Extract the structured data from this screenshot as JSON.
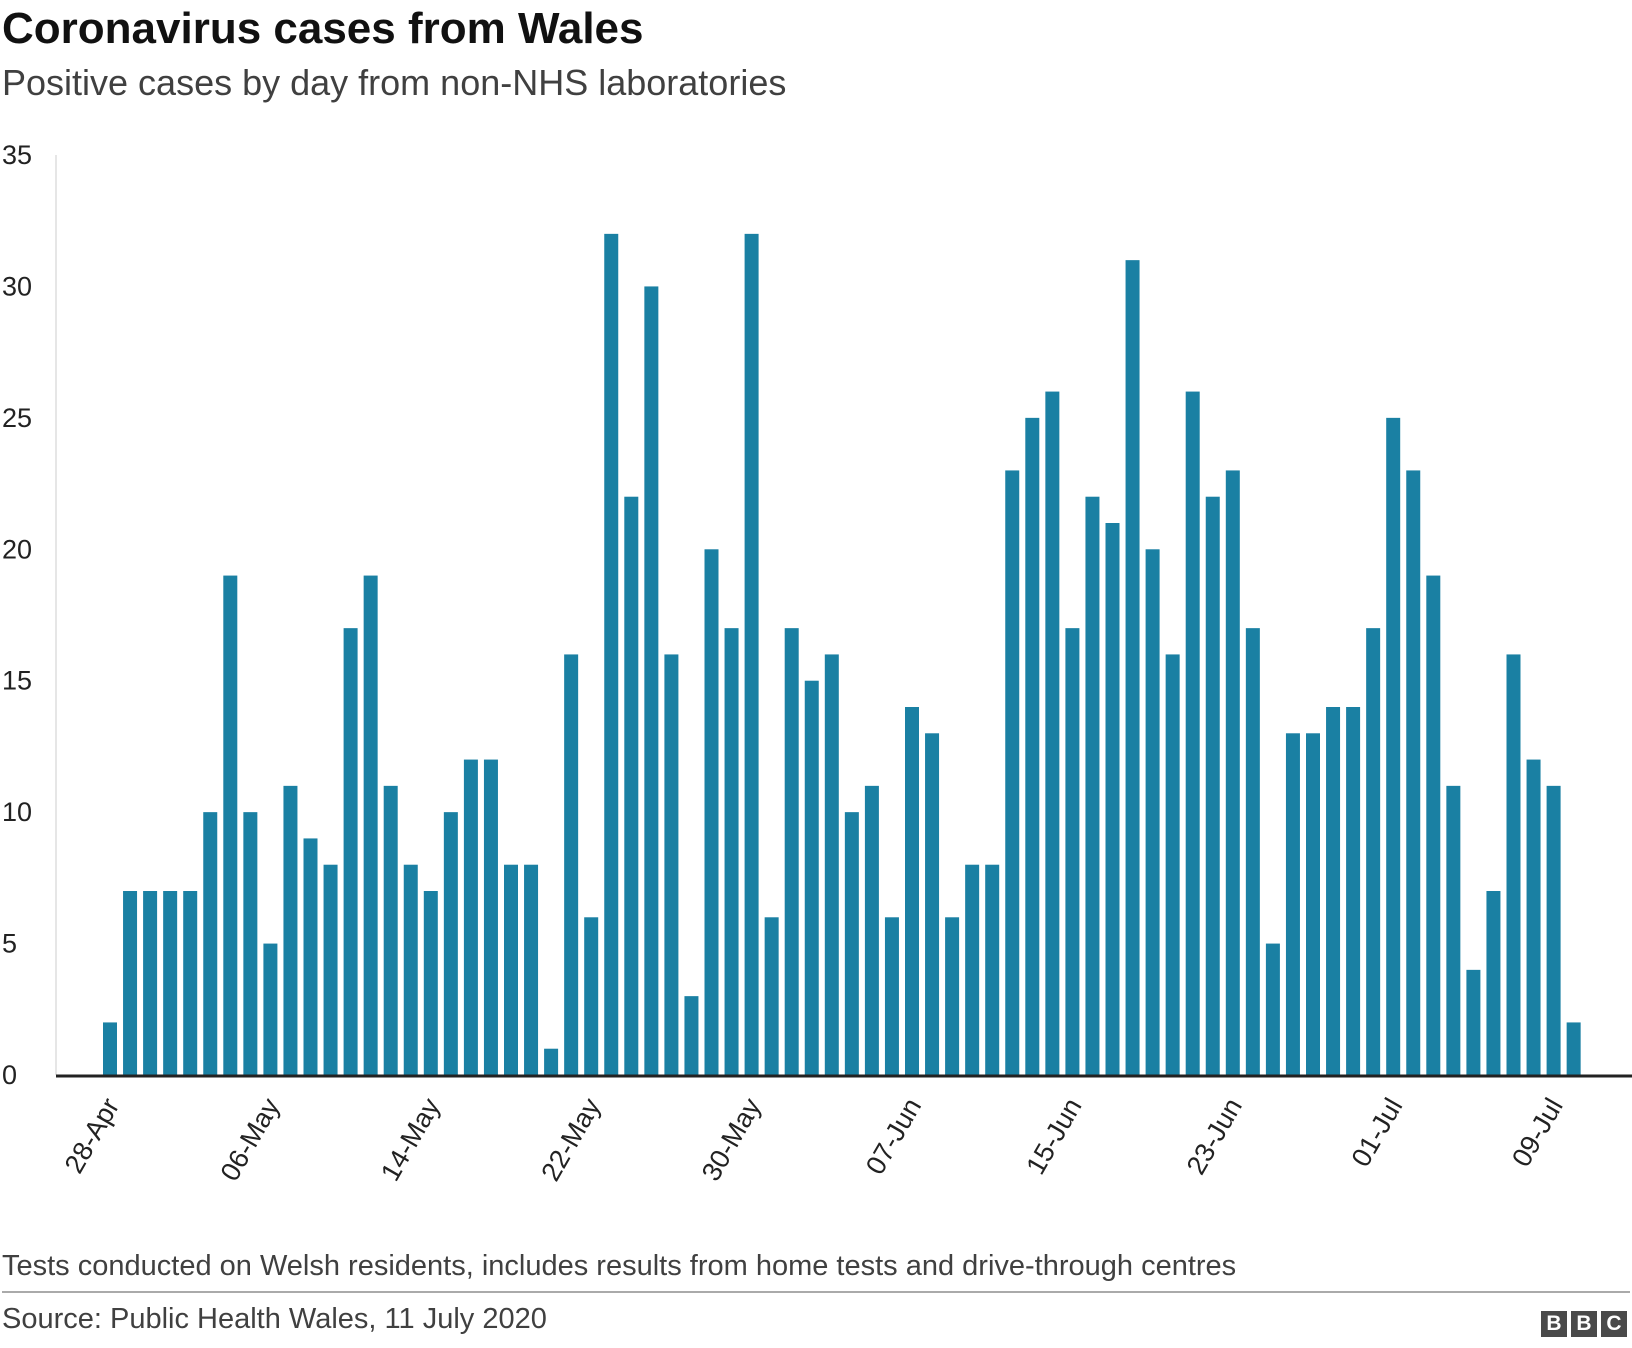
{
  "title": "Coronavirus cases from Wales",
  "subtitle": "Positive cases by day from non-NHS laboratories",
  "footnote": "Tests conducted on Welsh residents, includes results from home tests and drive-through centres",
  "source": "Source: Public Health Wales, 11 July 2020",
  "logo": {
    "letters": [
      "B",
      "B",
      "C"
    ]
  },
  "colors": {
    "bar": "#1a80a3",
    "axis": "#222222"
  },
  "chart_data": {
    "type": "bar",
    "title": "Coronavirus cases from Wales",
    "subtitle": "Positive cases by day from non-NHS laboratories",
    "xlabel": "",
    "ylabel": "",
    "ylim": [
      0,
      35
    ],
    "yticks": [
      0,
      5,
      10,
      15,
      20,
      25,
      30,
      35
    ],
    "grid": false,
    "legend": "none",
    "start_date": "28-Apr",
    "x_tick_labels": [
      {
        "index": 0,
        "label": "28-Apr"
      },
      {
        "index": 8,
        "label": "06-May"
      },
      {
        "index": 16,
        "label": "14-May"
      },
      {
        "index": 24,
        "label": "22-May"
      },
      {
        "index": 32,
        "label": "30-May"
      },
      {
        "index": 40,
        "label": "07-Jun"
      },
      {
        "index": 48,
        "label": "15-Jun"
      },
      {
        "index": 56,
        "label": "23-Jun"
      },
      {
        "index": 64,
        "label": "01-Jul"
      },
      {
        "index": 72,
        "label": "09-Jul"
      }
    ],
    "values": [
      2,
      7,
      7,
      7,
      7,
      10,
      19,
      10,
      5,
      11,
      9,
      8,
      17,
      19,
      11,
      8,
      7,
      10,
      12,
      12,
      8,
      8,
      1,
      16,
      6,
      32,
      22,
      30,
      16,
      3,
      20,
      17,
      32,
      6,
      17,
      15,
      16,
      10,
      11,
      6,
      14,
      13,
      6,
      8,
      8,
      23,
      25,
      26,
      17,
      22,
      21,
      31,
      20,
      16,
      26,
      22,
      23,
      17,
      5,
      13,
      13,
      14,
      14,
      17,
      25,
      23,
      19,
      11,
      4,
      7,
      16,
      12,
      11,
      2
    ]
  }
}
